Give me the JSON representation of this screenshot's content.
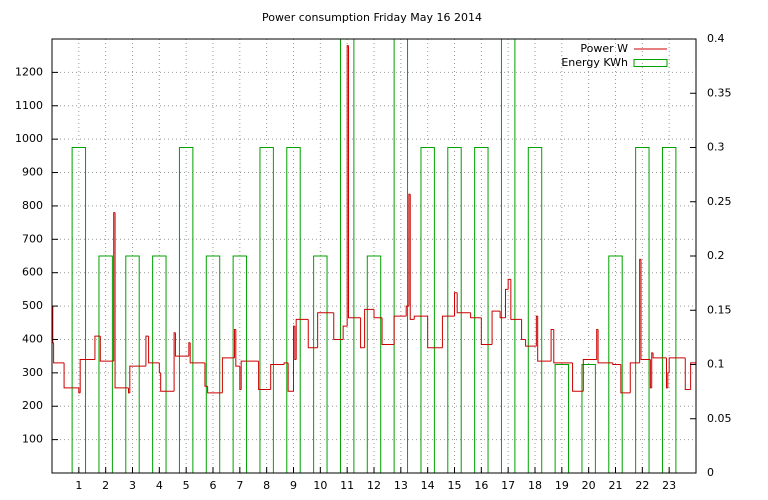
{
  "chart_data": {
    "type": "line",
    "title": "Power consumption Friday May 16 2014",
    "xlim": [
      0,
      24
    ],
    "xticks": [
      1,
      2,
      3,
      4,
      5,
      6,
      7,
      8,
      9,
      10,
      11,
      12,
      13,
      14,
      15,
      16,
      17,
      18,
      19,
      20,
      21,
      22,
      23
    ],
    "ylim": [
      0,
      1300
    ],
    "yticks": [
      100,
      200,
      300,
      400,
      500,
      600,
      700,
      800,
      900,
      1000,
      1100,
      1200
    ],
    "y2lim": [
      0,
      0.4
    ],
    "y2ticks": [
      0,
      0.05,
      0.1,
      0.15,
      0.2,
      0.25,
      0.3,
      0.35,
      0.4
    ],
    "grid": true,
    "legend": "top right",
    "series": [
      {
        "name": "Power W",
        "color": "#cc0000",
        "style": "steps",
        "x": [
          0,
          0.03,
          0.06,
          0.45,
          1.0,
          1.05,
          1.6,
          1.8,
          2.3,
          2.35,
          2.85,
          2.9,
          3.5,
          3.6,
          4.0,
          4.05,
          4.55,
          4.6,
          5.1,
          5.15,
          5.7,
          5.8,
          6.35,
          6.8,
          6.85,
          7.0,
          7.05,
          7.7,
          8.15,
          8.65,
          8.8,
          9.0,
          9.05,
          9.1,
          9.55,
          9.9,
          10.5,
          10.85,
          11.0,
          11.05,
          11.5,
          11.65,
          12.0,
          12.3,
          12.75,
          13.2,
          13.3,
          13.35,
          13.5,
          14.0,
          14.55,
          15.0,
          15.1,
          15.6,
          16.0,
          16.4,
          16.7,
          16.9,
          17.0,
          17.1,
          17.5,
          17.65,
          18.05,
          18.1,
          18.6,
          18.7,
          19.4,
          19.8,
          20.3,
          20.35,
          20.9,
          21.2,
          21.55,
          21.9,
          21.95,
          22.3,
          22.35,
          22.4,
          22.9,
          22.95,
          23.0,
          23.6,
          23.8
        ],
        "values": [
          500,
          390,
          330,
          255,
          240,
          340,
          410,
          335,
          780,
          255,
          240,
          320,
          410,
          330,
          300,
          245,
          420,
          350,
          390,
          330,
          260,
          240,
          345,
          430,
          320,
          250,
          335,
          250,
          325,
          330,
          245,
          440,
          340,
          460,
          375,
          480,
          400,
          440,
          1280,
          465,
          375,
          490,
          465,
          385,
          470,
          500,
          835,
          460,
          470,
          375,
          470,
          540,
          480,
          465,
          385,
          485,
          465,
          550,
          580,
          460,
          400,
          380,
          470,
          335,
          430,
          330,
          245,
          340,
          430,
          330,
          325,
          240,
          330,
          640,
          340,
          255,
          360,
          345,
          255,
          300,
          345,
          250,
          330
        ]
      },
      {
        "name": "Energy KWh",
        "color": "#00a000",
        "style": "boxes",
        "axis": "y2",
        "x": [
          1,
          2,
          3,
          4,
          5,
          6,
          7,
          8,
          9,
          10,
          11,
          12,
          13,
          14,
          15,
          16,
          17,
          18,
          19,
          20,
          21,
          22,
          23
        ],
        "values": [
          0.3,
          0.2,
          0.2,
          0.2,
          0.3,
          0.2,
          0.2,
          0.3,
          0.3,
          0.2,
          0.4,
          0.2,
          0.4,
          0.3,
          0.3,
          0.3,
          0.4,
          0.3,
          0.1,
          0.1,
          0.2,
          0.3,
          0.3
        ]
      }
    ]
  }
}
